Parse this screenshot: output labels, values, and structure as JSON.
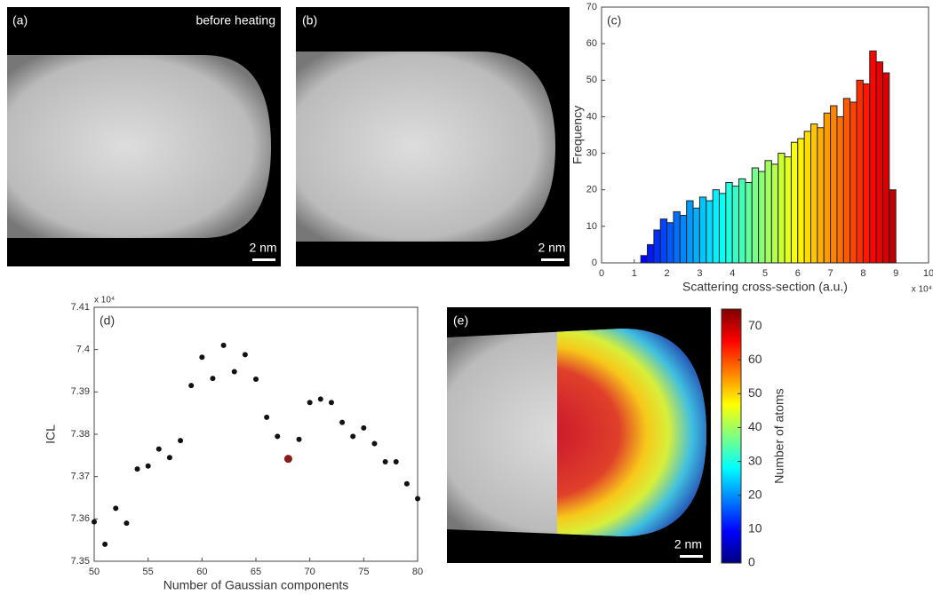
{
  "panels": {
    "a": {
      "label": "(a)",
      "caption": "before heating",
      "scale_bar": "2 nm"
    },
    "b": {
      "label": "(b)",
      "scale_bar": "2 nm"
    },
    "e": {
      "label": "(e)",
      "scale_bar": "2 nm",
      "colorbar": {
        "title": "Number of atoms",
        "colormap": "jet",
        "lim": [
          0,
          75
        ],
        "ticks": [
          0,
          10,
          20,
          30,
          40,
          50,
          60,
          70
        ]
      }
    }
  },
  "chart_data": [
    {
      "type": "histogram",
      "panel_label": "(c)",
      "x_label": "Scattering cross-section (a.u.)",
      "x_multiplier": "x 10⁴",
      "y_label": "Frequency",
      "colormap": "jet",
      "bins": [
        0,
        0.2,
        0.4,
        0.6,
        0.8,
        1.0,
        1.2,
        1.4,
        1.6,
        1.8,
        2.0,
        2.2,
        2.4,
        2.6,
        2.8,
        3.0,
        3.2,
        3.4,
        3.6,
        3.8,
        4.0,
        4.2,
        4.4,
        4.6,
        4.8,
        5.0,
        5.2,
        5.4,
        5.6,
        5.8,
        6.0,
        6.2,
        6.4,
        6.6,
        6.8,
        7.0,
        7.2,
        7.4,
        7.6,
        7.8,
        8.0,
        8.2,
        8.4,
        8.6,
        8.8,
        9.0,
        9.2,
        9.4
      ],
      "values": [
        0,
        0,
        0,
        0,
        0,
        0,
        2,
        5,
        9,
        12,
        11,
        14,
        13,
        17,
        15,
        18,
        17,
        20,
        19,
        22,
        21,
        23,
        22,
        26,
        25,
        28,
        27,
        30,
        29,
        33,
        34,
        36,
        38,
        37,
        41,
        43,
        40,
        45,
        44,
        50,
        49,
        58,
        55,
        52,
        20,
        0,
        0
      ],
      "xlim": [
        0,
        10
      ],
      "xticks": [
        0,
        1,
        2,
        3,
        4,
        5,
        6,
        7,
        8,
        9,
        10
      ],
      "ylim": [
        0,
        70
      ],
      "yticks": [
        0,
        10,
        20,
        30,
        40,
        50,
        60,
        70
      ]
    },
    {
      "type": "scatter",
      "panel_label": "(d)",
      "x_label": "Number of Gaussian components",
      "y_label": "ICL",
      "y_multiplier": "x 10⁴",
      "color": "#111111",
      "highlight_index": 18,
      "highlight_color": "#8b1a1a",
      "x": [
        50,
        51,
        52,
        53,
        54,
        55,
        56,
        57,
        58,
        59,
        60,
        61,
        62,
        63,
        64,
        65,
        66,
        67,
        68,
        69,
        70,
        71,
        72,
        73,
        74,
        75,
        76,
        77,
        78,
        79,
        80
      ],
      "y": [
        7.3593,
        7.354,
        7.3625,
        7.359,
        7.3718,
        7.3725,
        7.3765,
        7.3745,
        7.3785,
        7.3915,
        7.3982,
        7.3932,
        7.401,
        7.3948,
        7.3988,
        7.393,
        7.384,
        7.3795,
        7.3742,
        7.3788,
        7.3875,
        7.3883,
        7.3875,
        7.3828,
        7.3795,
        7.3815,
        7.3778,
        7.3735,
        7.3735,
        7.3683,
        7.3648
      ],
      "xlim": [
        50,
        80
      ],
      "xticks": [
        50,
        55,
        60,
        65,
        70,
        75,
        80
      ],
      "ylim": [
        7.35,
        7.41
      ],
      "yticks": [
        7.35,
        7.36,
        7.37,
        7.38,
        7.39,
        7.4,
        7.41
      ]
    }
  ]
}
